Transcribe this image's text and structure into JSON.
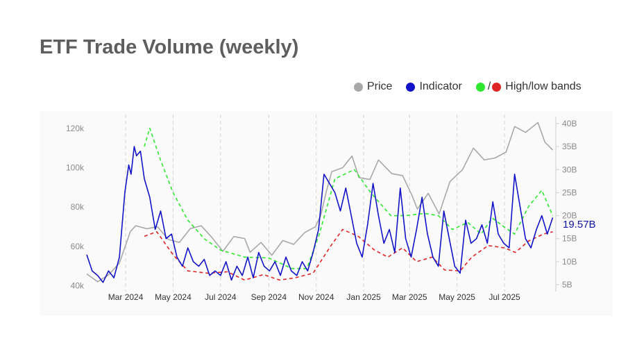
{
  "title": "ETF Trade Volume (weekly)",
  "legend": {
    "price_label": "Price",
    "indicator_label": "Indicator",
    "bands_label": "High/low bands",
    "slash": "/"
  },
  "colors": {
    "price": "#a8a8a8",
    "indicator": "#1212c8",
    "band_high": "#2ee82e",
    "band_low": "#e02424",
    "title": "#5e5e5e",
    "plot_bg": "#fafafa"
  },
  "chart_data": {
    "type": "line",
    "title": "ETF Trade Volume (weekly)",
    "xlabel": "",
    "ylabel_left": "",
    "ylabel_right": "",
    "x_range": [
      "2024-01-11",
      "2025-09-05"
    ],
    "y_left_range": [
      37000,
      126000
    ],
    "y_right_range": [
      3500,
      41500
    ],
    "grid": "vertical dashed lines at x ticks",
    "legend_position": "top-right",
    "x_ticks": [
      {
        "date": "2024-03-01",
        "label": "Mar 2024"
      },
      {
        "date": "2024-05-01",
        "label": "May 2024"
      },
      {
        "date": "2024-07-01",
        "label": "Jul 2024"
      },
      {
        "date": "2024-09-01",
        "label": "Sep 2024"
      },
      {
        "date": "2024-11-01",
        "label": "Nov 2024"
      },
      {
        "date": "2025-01-01",
        "label": "Jan 2025"
      },
      {
        "date": "2025-03-01",
        "label": "Mar 2025"
      },
      {
        "date": "2025-05-01",
        "label": "May 2025"
      },
      {
        "date": "2025-07-01",
        "label": "Jul 2025"
      }
    ],
    "y_left_ticks": [
      {
        "value": 40000,
        "label": "40k"
      },
      {
        "value": 60000,
        "label": "60k"
      },
      {
        "value": 80000,
        "label": "80k"
      },
      {
        "value": 100000,
        "label": "100k"
      },
      {
        "value": 120000,
        "label": "120k"
      }
    ],
    "y_right_ticks": [
      {
        "value": 5000000000,
        "label": "5B"
      },
      {
        "value": 10000000000,
        "label": "10B"
      },
      {
        "value": 15000000000,
        "label": "15B"
      },
      {
        "value": 20000000000,
        "label": "20B"
      },
      {
        "value": 25000000000,
        "label": "25B"
      },
      {
        "value": 30000000000,
        "label": "30B"
      },
      {
        "value": 35000000000,
        "label": "35B"
      },
      {
        "value": 40000000000,
        "label": "40B"
      }
    ],
    "last_value_label": "19.57B",
    "series": [
      {
        "name": "Price",
        "axis": "left",
        "style": "solid",
        "points": [
          [
            "2024-01-11",
            46000
          ],
          [
            "2024-01-25",
            42000
          ],
          [
            "2024-02-08",
            45500
          ],
          [
            "2024-02-22",
            51500
          ],
          [
            "2024-03-07",
            67500
          ],
          [
            "2024-03-14",
            70500
          ],
          [
            "2024-03-28",
            69000
          ],
          [
            "2024-04-11",
            70000
          ],
          [
            "2024-04-25",
            63500
          ],
          [
            "2024-05-09",
            62000
          ],
          [
            "2024-05-23",
            69000
          ],
          [
            "2024-06-06",
            70500
          ],
          [
            "2024-06-20",
            64500
          ],
          [
            "2024-07-04",
            57500
          ],
          [
            "2024-07-18",
            65000
          ],
          [
            "2024-08-01",
            64000
          ],
          [
            "2024-08-08",
            57000
          ],
          [
            "2024-08-22",
            62000
          ],
          [
            "2024-09-05",
            55500
          ],
          [
            "2024-09-19",
            63000
          ],
          [
            "2024-10-03",
            61000
          ],
          [
            "2024-10-17",
            67000
          ],
          [
            "2024-10-31",
            70000
          ],
          [
            "2024-11-07",
            76000
          ],
          [
            "2024-11-14",
            88000
          ],
          [
            "2024-11-21",
            98000
          ],
          [
            "2024-12-05",
            100000
          ],
          [
            "2024-12-17",
            106000
          ],
          [
            "2024-12-26",
            95000
          ],
          [
            "2025-01-09",
            94000
          ],
          [
            "2025-01-20",
            104000
          ],
          [
            "2025-02-06",
            97000
          ],
          [
            "2025-02-20",
            96000
          ],
          [
            "2025-03-04",
            86000
          ],
          [
            "2025-03-11",
            79000
          ],
          [
            "2025-03-25",
            87000
          ],
          [
            "2025-04-08",
            76500
          ],
          [
            "2025-04-22",
            93000
          ],
          [
            "2025-05-08",
            99000
          ],
          [
            "2025-05-22",
            110000
          ],
          [
            "2025-06-05",
            104000
          ],
          [
            "2025-06-19",
            105000
          ],
          [
            "2025-07-03",
            108000
          ],
          [
            "2025-07-14",
            121000
          ],
          [
            "2025-07-28",
            118000
          ],
          [
            "2025-08-13",
            123000
          ],
          [
            "2025-08-22",
            113000
          ],
          [
            "2025-09-01",
            109000
          ]
        ]
      },
      {
        "name": "Indicator",
        "axis": "right",
        "style": "solid",
        "points": [
          [
            "2024-01-11",
            11500000000
          ],
          [
            "2024-01-18",
            8000000000
          ],
          [
            "2024-01-25",
            7000000000
          ],
          [
            "2024-02-01",
            5500000000
          ],
          [
            "2024-02-08",
            8000000000
          ],
          [
            "2024-02-15",
            6500000000
          ],
          [
            "2024-02-22",
            11000000000
          ],
          [
            "2024-02-29",
            25000000000
          ],
          [
            "2024-03-05",
            31000000000
          ],
          [
            "2024-03-08",
            29000000000
          ],
          [
            "2024-03-12",
            35000000000
          ],
          [
            "2024-03-15",
            33000000000
          ],
          [
            "2024-03-20",
            34000000000
          ],
          [
            "2024-03-25",
            28000000000
          ],
          [
            "2024-04-01",
            24000000000
          ],
          [
            "2024-04-08",
            17000000000
          ],
          [
            "2024-04-15",
            21000000000
          ],
          [
            "2024-04-22",
            15000000000
          ],
          [
            "2024-04-29",
            16000000000
          ],
          [
            "2024-05-06",
            11000000000
          ],
          [
            "2024-05-13",
            9000000000
          ],
          [
            "2024-05-20",
            13000000000
          ],
          [
            "2024-05-27",
            10000000000
          ],
          [
            "2024-06-03",
            9000000000
          ],
          [
            "2024-06-10",
            10500000000
          ],
          [
            "2024-06-17",
            7000000000
          ],
          [
            "2024-06-24",
            8000000000
          ],
          [
            "2024-07-01",
            7000000000
          ],
          [
            "2024-07-08",
            10000000000
          ],
          [
            "2024-07-15",
            6000000000
          ],
          [
            "2024-07-22",
            9000000000
          ],
          [
            "2024-07-29",
            7000000000
          ],
          [
            "2024-08-05",
            11000000000
          ],
          [
            "2024-08-12",
            6500000000
          ],
          [
            "2024-08-19",
            12000000000
          ],
          [
            "2024-08-26",
            9000000000
          ],
          [
            "2024-09-02",
            8000000000
          ],
          [
            "2024-09-09",
            10000000000
          ],
          [
            "2024-09-16",
            7000000000
          ],
          [
            "2024-09-23",
            11000000000
          ],
          [
            "2024-09-30",
            8000000000
          ],
          [
            "2024-10-07",
            7000000000
          ],
          [
            "2024-10-14",
            10000000000
          ],
          [
            "2024-10-21",
            8000000000
          ],
          [
            "2024-10-28",
            12000000000
          ],
          [
            "2024-11-04",
            17000000000
          ],
          [
            "2024-11-11",
            29000000000
          ],
          [
            "2024-11-18",
            27000000000
          ],
          [
            "2024-11-25",
            25000000000
          ],
          [
            "2024-12-02",
            21000000000
          ],
          [
            "2024-12-09",
            26000000000
          ],
          [
            "2024-12-16",
            20000000000
          ],
          [
            "2024-12-23",
            14000000000
          ],
          [
            "2024-12-30",
            11000000000
          ],
          [
            "2025-01-06",
            18000000000
          ],
          [
            "2025-01-13",
            27000000000
          ],
          [
            "2025-01-20",
            20000000000
          ],
          [
            "2025-01-27",
            14000000000
          ],
          [
            "2025-02-03",
            17000000000
          ],
          [
            "2025-02-10",
            12000000000
          ],
          [
            "2025-02-17",
            26000000000
          ],
          [
            "2025-02-24",
            15000000000
          ],
          [
            "2025-03-03",
            11000000000
          ],
          [
            "2025-03-10",
            17000000000
          ],
          [
            "2025-03-17",
            24000000000
          ],
          [
            "2025-03-24",
            16000000000
          ],
          [
            "2025-03-31",
            11000000000
          ],
          [
            "2025-04-07",
            9000000000
          ],
          [
            "2025-04-14",
            21000000000
          ],
          [
            "2025-04-21",
            15000000000
          ],
          [
            "2025-04-28",
            9000000000
          ],
          [
            "2025-05-05",
            7500000000
          ],
          [
            "2025-05-12",
            19000000000
          ],
          [
            "2025-05-19",
            14000000000
          ],
          [
            "2025-05-26",
            15000000000
          ],
          [
            "2025-06-02",
            18000000000
          ],
          [
            "2025-06-09",
            14000000000
          ],
          [
            "2025-06-16",
            23000000000
          ],
          [
            "2025-06-23",
            16000000000
          ],
          [
            "2025-06-30",
            14000000000
          ],
          [
            "2025-07-07",
            13000000000
          ],
          [
            "2025-07-14",
            29000000000
          ],
          [
            "2025-07-21",
            22000000000
          ],
          [
            "2025-07-28",
            15000000000
          ],
          [
            "2025-08-04",
            13000000000
          ],
          [
            "2025-08-11",
            17000000000
          ],
          [
            "2025-08-18",
            20000000000
          ],
          [
            "2025-08-25",
            16000000000
          ],
          [
            "2025-09-01",
            19570000000
          ]
        ]
      },
      {
        "name": "High band",
        "axis": "right",
        "style": "dashed",
        "points": [
          [
            "2024-03-25",
            35000000000
          ],
          [
            "2024-04-01",
            39000000000
          ],
          [
            "2024-04-15",
            32000000000
          ],
          [
            "2024-05-01",
            25000000000
          ],
          [
            "2024-05-20",
            19000000000
          ],
          [
            "2024-06-10",
            15000000000
          ],
          [
            "2024-07-01",
            12500000000
          ],
          [
            "2024-08-01",
            11000000000
          ],
          [
            "2024-09-01",
            10800000000
          ],
          [
            "2024-10-01",
            8500000000
          ],
          [
            "2024-10-20",
            8500000000
          ],
          [
            "2024-11-05",
            16000000000
          ],
          [
            "2024-11-25",
            28000000000
          ],
          [
            "2024-12-20",
            30000000000
          ],
          [
            "2025-01-10",
            25000000000
          ],
          [
            "2025-02-05",
            20000000000
          ],
          [
            "2025-02-24",
            20000000000
          ],
          [
            "2025-03-20",
            20500000000
          ],
          [
            "2025-04-07",
            20000000000
          ],
          [
            "2025-04-25",
            17000000000
          ],
          [
            "2025-05-15",
            18500000000
          ],
          [
            "2025-06-01",
            16000000000
          ],
          [
            "2025-06-15",
            19500000000
          ],
          [
            "2025-07-01",
            17500000000
          ],
          [
            "2025-07-14",
            16000000000
          ],
          [
            "2025-08-01",
            22000000000
          ],
          [
            "2025-08-18",
            25500000000
          ],
          [
            "2025-09-01",
            20000000000
          ]
        ]
      },
      {
        "name": "Low band",
        "axis": "right",
        "style": "dashed",
        "points": [
          [
            "2024-03-25",
            15500000000
          ],
          [
            "2024-04-10",
            16500000000
          ],
          [
            "2024-05-01",
            11500000000
          ],
          [
            "2024-05-20",
            8000000000
          ],
          [
            "2024-06-15",
            7500000000
          ],
          [
            "2024-07-10",
            7800000000
          ],
          [
            "2024-08-01",
            6000000000
          ],
          [
            "2024-08-25",
            7200000000
          ],
          [
            "2024-09-15",
            6000000000
          ],
          [
            "2024-10-05",
            6500000000
          ],
          [
            "2024-10-28",
            7500000000
          ],
          [
            "2024-11-20",
            13500000000
          ],
          [
            "2024-12-05",
            17000000000
          ],
          [
            "2024-12-25",
            15500000000
          ],
          [
            "2025-01-15",
            12500000000
          ],
          [
            "2025-02-01",
            11000000000
          ],
          [
            "2025-02-20",
            13000000000
          ],
          [
            "2025-03-10",
            10000000000
          ],
          [
            "2025-03-30",
            11000000000
          ],
          [
            "2025-04-15",
            8200000000
          ],
          [
            "2025-05-05",
            8000000000
          ],
          [
            "2025-05-20",
            11000000000
          ],
          [
            "2025-06-10",
            13500000000
          ],
          [
            "2025-07-01",
            13000000000
          ],
          [
            "2025-07-15",
            12000000000
          ],
          [
            "2025-08-01",
            14500000000
          ],
          [
            "2025-08-20",
            16000000000
          ],
          [
            "2025-09-01",
            16500000000
          ]
        ]
      }
    ]
  }
}
